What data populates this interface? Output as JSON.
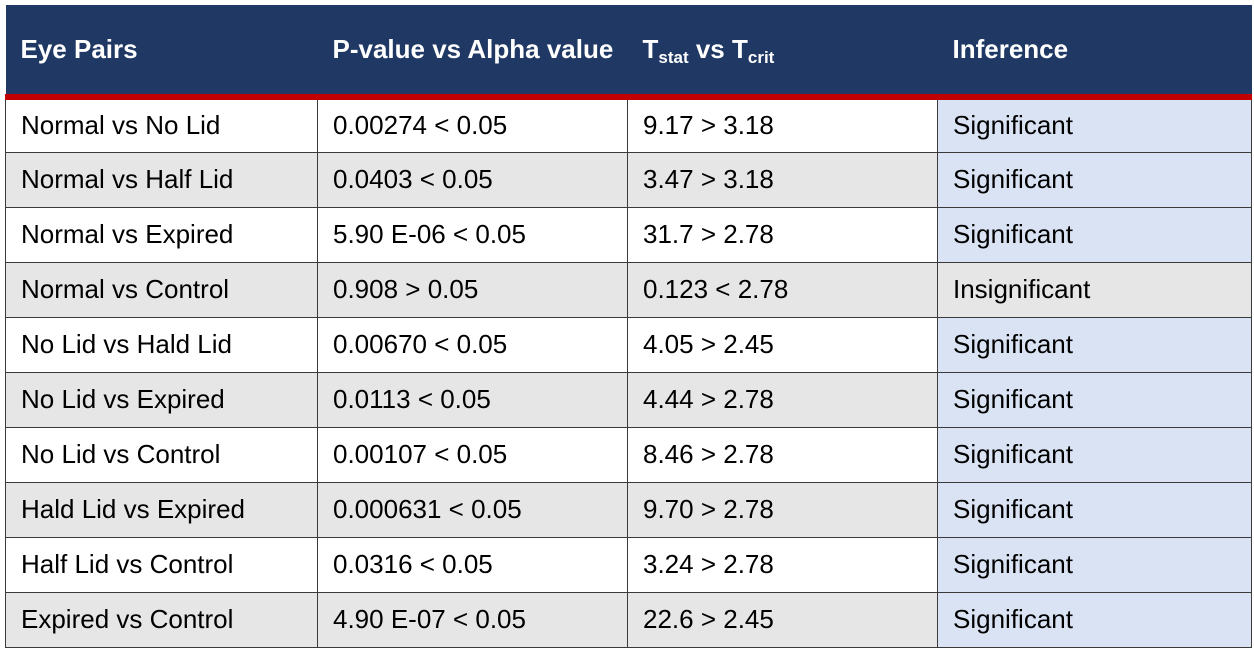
{
  "header": {
    "col1": "Eye Pairs",
    "col2": "P-value vs Alpha value",
    "col3": {
      "t1": "T",
      "t1_sub": "stat",
      "vs": " vs ",
      "t2": "T",
      "t2_sub": "crit"
    },
    "col4": "Inference"
  },
  "rows": [
    {
      "pair": "Normal vs No Lid",
      "pvalue": "0.00274 < 0.05",
      "tstat": "9.17 > 3.18",
      "inference": "Significant"
    },
    {
      "pair": "Normal vs Half Lid",
      "pvalue": "0.0403 < 0.05",
      "tstat": "3.47 > 3.18",
      "inference": "Significant"
    },
    {
      "pair": "Normal vs Expired",
      "pvalue": "5.90 E-06 < 0.05",
      "tstat": "31.7 > 2.78",
      "inference": "Significant"
    },
    {
      "pair": "Normal vs Control",
      "pvalue": "0.908 > 0.05",
      "tstat": "0.123 < 2.78",
      "inference": "Insignificant"
    },
    {
      "pair": "No Lid vs Hald Lid",
      "pvalue": "0.00670 < 0.05",
      "tstat": "4.05 > 2.45",
      "inference": "Significant"
    },
    {
      "pair": "No Lid vs Expired",
      "pvalue": "0.0113 < 0.05",
      "tstat": "4.44 > 2.78",
      "inference": "Significant"
    },
    {
      "pair": "No Lid vs Control",
      "pvalue": "0.00107 < 0.05",
      "tstat": "8.46 > 2.78",
      "inference": "Significant"
    },
    {
      "pair": "Hald Lid vs Expired",
      "pvalue": "0.000631 < 0.05",
      "tstat": "9.70 > 2.78",
      "inference": "Significant"
    },
    {
      "pair": "Half Lid vs Control",
      "pvalue": "0.0316 < 0.05",
      "tstat": "3.24 > 2.78",
      "inference": "Significant"
    },
    {
      "pair": "Expired vs Control",
      "pvalue": "4.90 E-07 < 0.05",
      "tstat": "22.6 > 2.45",
      "inference": "Significant"
    }
  ],
  "colors": {
    "header_bg": "#1f3864",
    "header_rule": "#c00000",
    "inference_bg": "#dae3f3",
    "alt_row_bg": "#e6e6e6"
  }
}
